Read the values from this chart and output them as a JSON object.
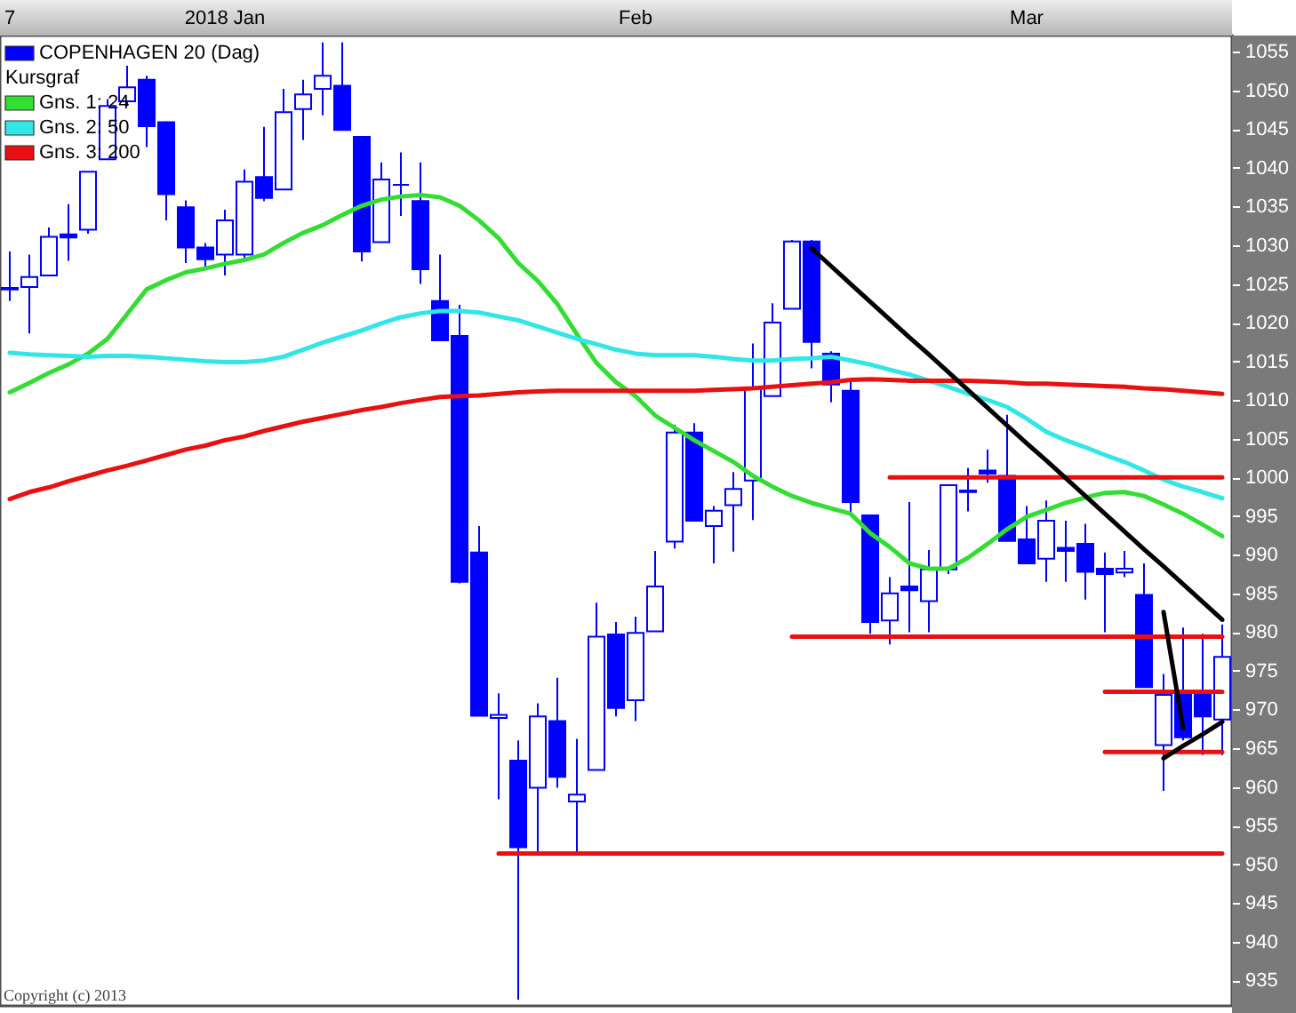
{
  "chart_data": {
    "type": "candlestick",
    "categories": [
      "7",
      null,
      null,
      null,
      null,
      null,
      null,
      null,
      null,
      null,
      null,
      "2018 Jan",
      null,
      null,
      null,
      null,
      null,
      null,
      null,
      null,
      null,
      null,
      null,
      null,
      null,
      null,
      null,
      null,
      null,
      null,
      null,
      null,
      "Feb",
      null,
      null,
      null,
      null,
      null,
      null,
      null,
      null,
      null,
      null,
      null,
      null,
      null,
      null,
      null,
      null,
      null,
      null,
      null,
      "Mar",
      null,
      null,
      null,
      null,
      null,
      null,
      null,
      null,
      null,
      null
    ],
    "ylim": [
      931.7,
      1057.1
    ],
    "yticks": [
      935,
      940,
      945,
      950,
      955,
      960,
      965,
      970,
      975,
      980,
      985,
      990,
      995,
      1000,
      1005,
      1010,
      1015,
      1020,
      1025,
      1030,
      1035,
      1040,
      1045,
      1050,
      1055
    ],
    "legend": "top left",
    "annotations": [
      "Kursgraf",
      "Copyright (c) 2013"
    ],
    "series": [
      {
        "name": "COPENHAGEN 20 (Dag)",
        "color": "#0000ff",
        "ohlc": [
          [
            1024.5,
            1029.2,
            1022.8,
            1024.3
          ],
          [
            1024.6,
            1028.8,
            1018.6,
            1025.9
          ],
          [
            1026.1,
            1032.3,
            1026.1,
            1031.1
          ],
          [
            1031.4,
            1035.3,
            1028.0,
            1031.0
          ],
          [
            1032.0,
            1039.5,
            1031.5,
            1039.5
          ],
          [
            1041.1,
            1048.9,
            1041.1,
            1048.0
          ],
          [
            1048.6,
            1053.2,
            1048.0,
            1050.4
          ],
          [
            1051.4,
            1051.9,
            1042.7,
            1045.4
          ],
          [
            1045.9,
            1046.0,
            1033.2,
            1036.6
          ],
          [
            1034.9,
            1035.8,
            1027.7,
            1029.7
          ],
          [
            1029.7,
            1030.3,
            1027.1,
            1028.2
          ],
          [
            1028.8,
            1034.6,
            1026.1,
            1033.2
          ],
          [
            1028.8,
            1039.8,
            1028.0,
            1038.2
          ],
          [
            1038.8,
            1045.3,
            1035.7,
            1036.1
          ],
          [
            1037.2,
            1050.2,
            1037.2,
            1047.2
          ],
          [
            1047.6,
            1051.4,
            1043.6,
            1049.5
          ],
          [
            1050.2,
            1056.2,
            1046.8,
            1051.9
          ],
          [
            1050.6,
            1056.2,
            1044.9,
            1044.9
          ],
          [
            1044.0,
            1044.0,
            1027.9,
            1029.2
          ],
          [
            1030.4,
            1040.7,
            1030.4,
            1038.5
          ],
          [
            1037.8,
            1042.0,
            1033.8,
            1037.8
          ],
          [
            1035.7,
            1040.7,
            1025.0,
            1026.9
          ],
          [
            1022.8,
            1028.8,
            1017.7,
            1017.7
          ],
          [
            1018.3,
            1022.3,
            986.3,
            986.5
          ],
          [
            990.3,
            993.7,
            969.2,
            969.2
          ],
          [
            968.9,
            972.1,
            958.4,
            969.3
          ],
          [
            963.4,
            966.0,
            932.5,
            952.2
          ],
          [
            959.9,
            970.8,
            951.5,
            969.1
          ],
          [
            968.5,
            974.1,
            959.9,
            961.3
          ],
          [
            958.1,
            966.2,
            951.5,
            959.0
          ],
          [
            962.2,
            983.8,
            962.2,
            979.4
          ],
          [
            979.7,
            981.3,
            969.1,
            970.2
          ],
          [
            971.2,
            982.0,
            968.5,
            979.9
          ],
          [
            980.1,
            990.5,
            980.1,
            985.9
          ],
          [
            991.7,
            1006.8,
            990.8,
            1005.8
          ],
          [
            1005.8,
            1007.0,
            994.4,
            994.4
          ],
          [
            993.7,
            996.3,
            988.9,
            995.7
          ],
          [
            996.4,
            1000.7,
            990.4,
            998.5
          ],
          [
            999.6,
            1017.3,
            994.5,
            1011.6
          ],
          [
            1010.5,
            1022.5,
            1010.5,
            1020.0
          ],
          [
            1021.8,
            1030.7,
            1021.8,
            1030.5
          ],
          [
            1030.5,
            1030.7,
            1014.1,
            1017.5
          ],
          [
            1016.0,
            1016.3,
            1009.7,
            1012.0
          ],
          [
            1011.2,
            1012.4,
            995.1,
            996.8
          ],
          [
            995.1,
            995.1,
            979.8,
            981.3
          ],
          [
            981.5,
            987.1,
            978.4,
            985.0
          ],
          [
            985.9,
            996.8,
            980.0,
            985.4
          ],
          [
            984.0,
            990.6,
            980.0,
            988.1
          ],
          [
            988.1,
            999.0,
            987.5,
            999.0
          ],
          [
            998.1,
            1001.2,
            995.6,
            998.3
          ],
          [
            1000.9,
            1003.6,
            999.3,
            1000.5
          ],
          [
            1000.2,
            1008.1,
            991.8,
            991.8
          ],
          [
            992.0,
            996.3,
            988.9,
            988.9
          ],
          [
            989.5,
            997.0,
            986.5,
            994.4
          ],
          [
            990.9,
            994.4,
            986.5,
            990.5
          ],
          [
            991.4,
            994.0,
            984.2,
            987.8
          ],
          [
            988.2,
            990.3,
            980.0,
            987.5
          ],
          [
            987.7,
            990.5,
            987.1,
            988.2
          ],
          [
            984.8,
            988.9,
            972.9,
            972.9
          ],
          [
            965.4,
            974.6,
            959.5,
            971.9
          ],
          [
            972.1,
            980.6,
            966.0,
            966.4
          ],
          [
            972.1,
            979.8,
            964.1,
            969.1
          ],
          [
            968.7,
            981.0,
            964.1,
            976.8
          ]
        ]
      },
      {
        "name": "Gns. 1: 24",
        "type": "line",
        "color": "#33dd33",
        "values": [
          1011.0,
          1012.2,
          1013.5,
          1014.6,
          1016.0,
          1017.9,
          1021.1,
          1024.3,
          1025.5,
          1026.5,
          1027.0,
          1027.6,
          1028.1,
          1028.8,
          1030.3,
          1031.6,
          1032.6,
          1033.9,
          1035.1,
          1035.9,
          1036.3,
          1036.5,
          1036.2,
          1035.1,
          1033.2,
          1030.9,
          1027.7,
          1025.4,
          1022.4,
          1018.5,
          1014.8,
          1012.3,
          1010.5,
          1008.0,
          1006.4,
          1004.8,
          1003.4,
          1002.0,
          1000.2,
          998.8,
          997.6,
          996.7,
          996.0,
          995.3,
          992.8,
          991.0,
          988.9,
          988.2,
          988.2,
          989.6,
          991.4,
          993.3,
          994.9,
          995.8,
          996.7,
          997.4,
          998.0,
          998.1,
          997.6,
          996.5,
          995.3,
          993.9,
          992.4
        ]
      },
      {
        "name": "Gns. 2: 50",
        "type": "line",
        "color": "#33e6e6",
        "values": [
          1016.1,
          1015.9,
          1015.8,
          1015.7,
          1015.6,
          1015.7,
          1015.7,
          1015.6,
          1015.4,
          1015.2,
          1015.0,
          1014.9,
          1014.9,
          1015.1,
          1015.6,
          1016.5,
          1017.4,
          1018.2,
          1019.0,
          1019.9,
          1020.7,
          1021.2,
          1021.5,
          1021.5,
          1021.3,
          1020.8,
          1020.3,
          1019.5,
          1018.7,
          1017.9,
          1017.2,
          1016.5,
          1016.0,
          1015.8,
          1015.8,
          1015.8,
          1015.6,
          1015.3,
          1015.1,
          1015.1,
          1015.3,
          1015.4,
          1015.6,
          1015.1,
          1014.6,
          1013.9,
          1013.3,
          1012.5,
          1011.7,
          1010.8,
          1010.0,
          1009.1,
          1007.6,
          1005.9,
          1004.8,
          1003.9,
          1002.9,
          1002.0,
          1000.9,
          999.7,
          998.8,
          998.1,
          997.3
        ]
      },
      {
        "name": "Gns. 3: 200",
        "type": "line",
        "color": "#e81010",
        "values": [
          997.2,
          998.1,
          998.7,
          999.5,
          1000.2,
          1000.9,
          1001.5,
          1002.2,
          1002.9,
          1003.6,
          1004.1,
          1004.8,
          1005.3,
          1006.0,
          1006.6,
          1007.2,
          1007.7,
          1008.2,
          1008.7,
          1009.1,
          1009.6,
          1010.0,
          1010.4,
          1010.5,
          1010.6,
          1010.8,
          1011.0,
          1011.1,
          1011.2,
          1011.2,
          1011.2,
          1011.2,
          1011.2,
          1011.2,
          1011.2,
          1011.2,
          1011.3,
          1011.4,
          1011.5,
          1011.7,
          1011.9,
          1012.1,
          1012.3,
          1012.6,
          1012.7,
          1012.6,
          1012.5,
          1012.5,
          1012.5,
          1012.5,
          1012.4,
          1012.3,
          1012.1,
          1012.1,
          1012.0,
          1011.9,
          1011.8,
          1011.7,
          1011.5,
          1011.4,
          1011.2,
          1011.0,
          1010.8
        ]
      },
      {
        "type": "line",
        "color": "#e81010",
        "values": [
          null,
          null,
          null,
          null,
          null,
          null,
          null,
          null,
          null,
          null,
          null,
          null,
          null,
          null,
          null,
          null,
          null,
          null,
          null,
          null,
          null,
          null,
          null,
          null,
          null,
          951.4,
          951.4,
          951.4,
          951.4,
          951.4,
          951.4,
          951.4,
          951.4,
          951.4,
          951.4,
          951.4,
          951.4,
          951.4,
          951.4,
          951.4,
          951.4,
          951.4,
          951.4,
          951.4,
          951.4,
          951.4,
          951.4,
          951.4,
          951.4,
          951.4,
          951.4,
          951.4,
          951.4,
          951.4,
          951.4,
          951.4,
          951.4,
          951.4,
          951.4,
          951.4,
          951.4,
          951.4,
          951.4
        ]
      },
      {
        "type": "line",
        "color": "#e81010",
        "values": [
          null,
          null,
          null,
          null,
          null,
          null,
          null,
          null,
          null,
          null,
          null,
          null,
          null,
          null,
          null,
          null,
          null,
          null,
          null,
          null,
          null,
          null,
          null,
          null,
          null,
          null,
          null,
          null,
          null,
          null,
          null,
          null,
          null,
          null,
          null,
          null,
          null,
          null,
          null,
          null,
          979.4,
          979.4,
          979.4,
          979.4,
          979.4,
          979.4,
          979.4,
          979.4,
          979.4,
          979.4,
          979.4,
          979.4,
          979.4,
          979.4,
          979.4,
          979.4,
          979.4,
          979.4,
          979.4,
          979.4,
          979.4,
          979.4,
          979.4
        ]
      },
      {
        "type": "line",
        "color": "#e81010",
        "values": [
          null,
          null,
          null,
          null,
          null,
          null,
          null,
          null,
          null,
          null,
          null,
          null,
          null,
          null,
          null,
          null,
          null,
          null,
          null,
          null,
          null,
          null,
          null,
          null,
          null,
          null,
          null,
          null,
          null,
          null,
          null,
          null,
          null,
          null,
          null,
          null,
          null,
          null,
          null,
          null,
          null,
          null,
          null,
          null,
          null,
          1000.0,
          1000.0,
          1000.0,
          1000.0,
          1000.0,
          1000.0,
          1000.0,
          1000.0,
          1000.0,
          1000.0,
          1000.0,
          1000.0,
          1000.0,
          1000.0,
          1000.0,
          1000.0,
          1000.0,
          1000.0
        ]
      },
      {
        "type": "line",
        "color": "#e81010",
        "values": [
          null,
          null,
          null,
          null,
          null,
          null,
          null,
          null,
          null,
          null,
          null,
          null,
          null,
          null,
          null,
          null,
          null,
          null,
          null,
          null,
          null,
          null,
          null,
          null,
          null,
          null,
          null,
          null,
          null,
          null,
          null,
          null,
          null,
          null,
          null,
          null,
          null,
          null,
          null,
          null,
          null,
          null,
          null,
          null,
          null,
          null,
          null,
          null,
          null,
          null,
          null,
          null,
          null,
          null,
          null,
          null,
          972.3,
          972.3,
          972.3,
          972.3,
          972.3,
          972.3,
          972.3
        ]
      },
      {
        "type": "line",
        "color": "#e81010",
        "values": [
          null,
          null,
          null,
          null,
          null,
          null,
          null,
          null,
          null,
          null,
          null,
          null,
          null,
          null,
          null,
          null,
          null,
          null,
          null,
          null,
          null,
          null,
          null,
          null,
          null,
          null,
          null,
          null,
          null,
          null,
          null,
          null,
          null,
          null,
          null,
          null,
          null,
          null,
          null,
          null,
          null,
          null,
          null,
          null,
          null,
          null,
          null,
          null,
          null,
          null,
          null,
          null,
          null,
          null,
          null,
          null,
          964.5,
          964.5,
          964.5,
          964.5,
          964.5,
          964.5,
          964.5
        ]
      },
      {
        "type": "line",
        "color": "#000000",
        "values": [
          null,
          null,
          null,
          null,
          null,
          null,
          null,
          null,
          null,
          null,
          null,
          null,
          null,
          null,
          null,
          null,
          null,
          null,
          null,
          null,
          null,
          null,
          null,
          null,
          null,
          null,
          null,
          null,
          null,
          null,
          null,
          null,
          null,
          null,
          null,
          null,
          null,
          null,
          null,
          null,
          null,
          1029.6,
          1027.3,
          1025.0,
          1022.7,
          1020.4,
          1018.1,
          1015.9,
          1013.6,
          1011.3,
          1009.0,
          1006.7,
          1004.4,
          1002.2,
          999.9,
          997.6,
          995.3,
          993.0,
          990.7,
          988.5,
          986.2,
          983.9,
          981.6
        ]
      },
      {
        "type": "line",
        "color": "#000000",
        "values": [
          null,
          null,
          null,
          null,
          null,
          null,
          null,
          null,
          null,
          null,
          null,
          null,
          null,
          null,
          null,
          null,
          null,
          null,
          null,
          null,
          null,
          null,
          null,
          null,
          null,
          null,
          null,
          null,
          null,
          null,
          null,
          null,
          null,
          null,
          null,
          null,
          null,
          null,
          null,
          null,
          null,
          null,
          null,
          null,
          null,
          null,
          null,
          null,
          null,
          null,
          null,
          null,
          null,
          null,
          null,
          null,
          null,
          null,
          null,
          982.6,
          967.6,
          null,
          null
        ]
      },
      {
        "type": "line",
        "color": "#000000",
        "values": [
          null,
          null,
          null,
          null,
          null,
          null,
          null,
          null,
          null,
          null,
          null,
          null,
          null,
          null,
          null,
          null,
          null,
          null,
          null,
          null,
          null,
          null,
          null,
          null,
          null,
          null,
          null,
          null,
          null,
          null,
          null,
          null,
          null,
          null,
          null,
          null,
          null,
          null,
          null,
          null,
          null,
          null,
          null,
          null,
          null,
          null,
          null,
          null,
          null,
          null,
          null,
          null,
          null,
          null,
          null,
          null,
          null,
          null,
          null,
          963.7,
          965.3,
          966.8,
          968.4
        ]
      }
    ]
  }
}
